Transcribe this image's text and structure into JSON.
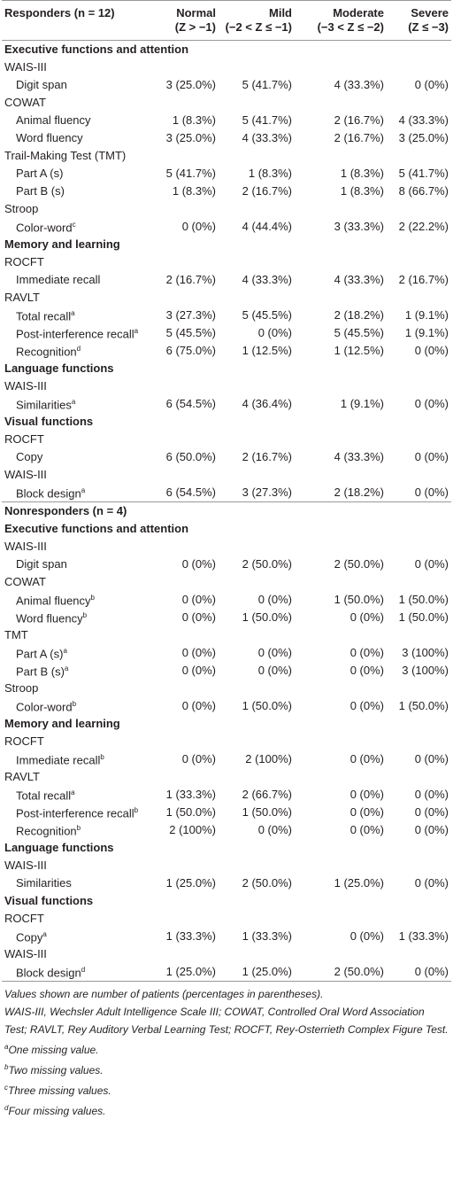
{
  "table": {
    "header": {
      "cohort": "Responders (n = 12)",
      "columns": [
        [
          "Normal",
          "(Z > −1)"
        ],
        [
          "Mild",
          "(−2 < Z ≤ −1)"
        ],
        [
          "Moderate",
          "(−3 < Z ≤ −2)"
        ],
        [
          "Severe",
          "(Z ≤ −3)"
        ]
      ]
    },
    "rows": [
      {
        "kind": "section",
        "label": "Executive functions and attention"
      },
      {
        "kind": "group",
        "label": "WAIS-III"
      },
      {
        "label": "Digit span",
        "values": [
          "3 (25.0%)",
          "5 (41.7%)",
          "4 (33.3%)",
          "0 (0%)"
        ]
      },
      {
        "kind": "group",
        "label": "COWAT"
      },
      {
        "label": "Animal fluency",
        "values": [
          "1 (8.3%)",
          "5 (41.7%)",
          "2 (16.7%)",
          "4 (33.3%)"
        ]
      },
      {
        "label": "Word fluency",
        "values": [
          "3 (25.0%)",
          "4 (33.3%)",
          "2 (16.7%)",
          "3 (25.0%)"
        ]
      },
      {
        "kind": "group",
        "label": "Trail-Making Test (TMT)"
      },
      {
        "label": "Part A (s)",
        "values": [
          "5 (41.7%)",
          "1 (8.3%)",
          "1 (8.3%)",
          "5 (41.7%)"
        ]
      },
      {
        "label": "Part B (s)",
        "values": [
          "1 (8.3%)",
          "2 (16.7%)",
          "1 (8.3%)",
          "8 (66.7%)"
        ]
      },
      {
        "kind": "group",
        "label": "Stroop"
      },
      {
        "label": "Color-word",
        "note": "c",
        "values": [
          "0 (0%)",
          "4 (44.4%)",
          "3 (33.3%)",
          "2 (22.2%)"
        ]
      },
      {
        "kind": "section",
        "label": "Memory and learning"
      },
      {
        "kind": "group",
        "label": "ROCFT"
      },
      {
        "label": "Immediate recall",
        "values": [
          "2 (16.7%)",
          "4 (33.3%)",
          "4 (33.3%)",
          "2 (16.7%)"
        ]
      },
      {
        "kind": "group",
        "label": "RAVLT"
      },
      {
        "label": "Total recall",
        "note": "a",
        "values": [
          "3 (27.3%)",
          "5 (45.5%)",
          "2 (18.2%)",
          "1 (9.1%)"
        ]
      },
      {
        "label": "Post-interference recall",
        "note": "a",
        "values": [
          "5 (45.5%)",
          "0 (0%)",
          "5 (45.5%)",
          "1 (9.1%)"
        ]
      },
      {
        "label": "Recognition",
        "note": "d",
        "values": [
          "6 (75.0%)",
          "1 (12.5%)",
          "1 (12.5%)",
          "0 (0%)"
        ]
      },
      {
        "kind": "section",
        "label": "Language functions"
      },
      {
        "kind": "group",
        "label": "WAIS-III"
      },
      {
        "label": "Similarities",
        "note": "a",
        "values": [
          "6 (54.5%)",
          "4 (36.4%)",
          "1 (9.1%)",
          "0 (0%)"
        ]
      },
      {
        "kind": "section",
        "label": "Visual functions"
      },
      {
        "kind": "group",
        "label": "ROCFT"
      },
      {
        "label": "Copy",
        "values": [
          "6 (50.0%)",
          "2 (16.7%)",
          "4 (33.3%)",
          "0 (0%)"
        ]
      },
      {
        "kind": "group",
        "label": "WAIS-III"
      },
      {
        "label": "Block design",
        "note": "a",
        "values": [
          "6 (54.5%)",
          "3 (27.3%)",
          "2 (18.2%)",
          "0 (0%)"
        ]
      },
      {
        "kind": "cohort",
        "label": "Nonresponders (n = 4)"
      },
      {
        "kind": "section",
        "label": "Executive functions and attention"
      },
      {
        "kind": "group",
        "label": "WAIS-III"
      },
      {
        "label": "Digit span",
        "values": [
          "0 (0%)",
          "2 (50.0%)",
          "2 (50.0%)",
          "0 (0%)"
        ]
      },
      {
        "kind": "group",
        "label": "COWAT"
      },
      {
        "label": "Animal fluency",
        "note": "b",
        "values": [
          "0 (0%)",
          "0 (0%)",
          "1 (50.0%)",
          "1 (50.0%)"
        ]
      },
      {
        "label": "Word fluency",
        "note": "b",
        "values": [
          "0 (0%)",
          "1 (50.0%)",
          "0 (0%)",
          "1 (50.0%)"
        ]
      },
      {
        "kind": "group",
        "label": "TMT"
      },
      {
        "label": "Part A (s)",
        "note": "a",
        "values": [
          "0 (0%)",
          "0 (0%)",
          "0 (0%)",
          "3 (100%)"
        ]
      },
      {
        "label": "Part B (s)",
        "note": "a",
        "values": [
          "0 (0%)",
          "0 (0%)",
          "0 (0%)",
          "3 (100%)"
        ]
      },
      {
        "kind": "group",
        "label": "Stroop"
      },
      {
        "label": "Color-word",
        "note": "b",
        "values": [
          "0 (0%)",
          "1 (50.0%)",
          "0 (0%)",
          "1 (50.0%)"
        ]
      },
      {
        "kind": "section",
        "label": "Memory and learning"
      },
      {
        "kind": "group",
        "label": "ROCFT"
      },
      {
        "label": "Immediate recall",
        "note": "b",
        "values": [
          "0 (0%)",
          "2 (100%)",
          "0 (0%)",
          "0 (0%)"
        ]
      },
      {
        "kind": "group",
        "label": "RAVLT"
      },
      {
        "label": "Total recall",
        "note": "a",
        "values": [
          "1 (33.3%)",
          "2 (66.7%)",
          "0 (0%)",
          "0 (0%)"
        ]
      },
      {
        "label": "Post-interference recall",
        "note": "b",
        "values": [
          "1 (50.0%)",
          "1 (50.0%)",
          "0 (0%)",
          "0 (0%)"
        ]
      },
      {
        "label": "Recognition",
        "note": "b",
        "values": [
          "2 (100%)",
          "0 (0%)",
          "0 (0%)",
          "0 (0%)"
        ]
      },
      {
        "kind": "section",
        "label": "Language functions"
      },
      {
        "kind": "group",
        "label": "WAIS-III"
      },
      {
        "label": "Similarities",
        "values": [
          "1 (25.0%)",
          "2 (50.0%)",
          "1 (25.0%)",
          "0 (0%)"
        ]
      },
      {
        "kind": "section",
        "label": "Visual functions"
      },
      {
        "kind": "group",
        "label": "ROCFT"
      },
      {
        "label": "Copy",
        "note": "a",
        "values": [
          "1 (33.3%)",
          "1 (33.3%)",
          "0 (0%)",
          "1 (33.3%)"
        ]
      },
      {
        "kind": "group",
        "label": "WAIS-III"
      },
      {
        "label": "Block design",
        "note": "d",
        "values": [
          "1 (25.0%)",
          "1 (25.0%)",
          "2 (50.0%)",
          "0 (0%)"
        ]
      }
    ],
    "footer": {
      "lines": [
        "Values shown are number of patients (percentages in parentheses).",
        "WAIS-III, Wechsler Adult Intelligence Scale III; COWAT, Controlled Oral Word Association Test; RAVLT, Rey Auditory Verbal Learning Test; ROCFT, Rey-Osterrieth Complex Figure Test."
      ],
      "notes": [
        {
          "mark": "a",
          "text": "One missing value."
        },
        {
          "mark": "b",
          "text": "Two missing values."
        },
        {
          "mark": "c",
          "text": "Three missing values."
        },
        {
          "mark": "d",
          "text": "Four missing values."
        }
      ]
    }
  }
}
